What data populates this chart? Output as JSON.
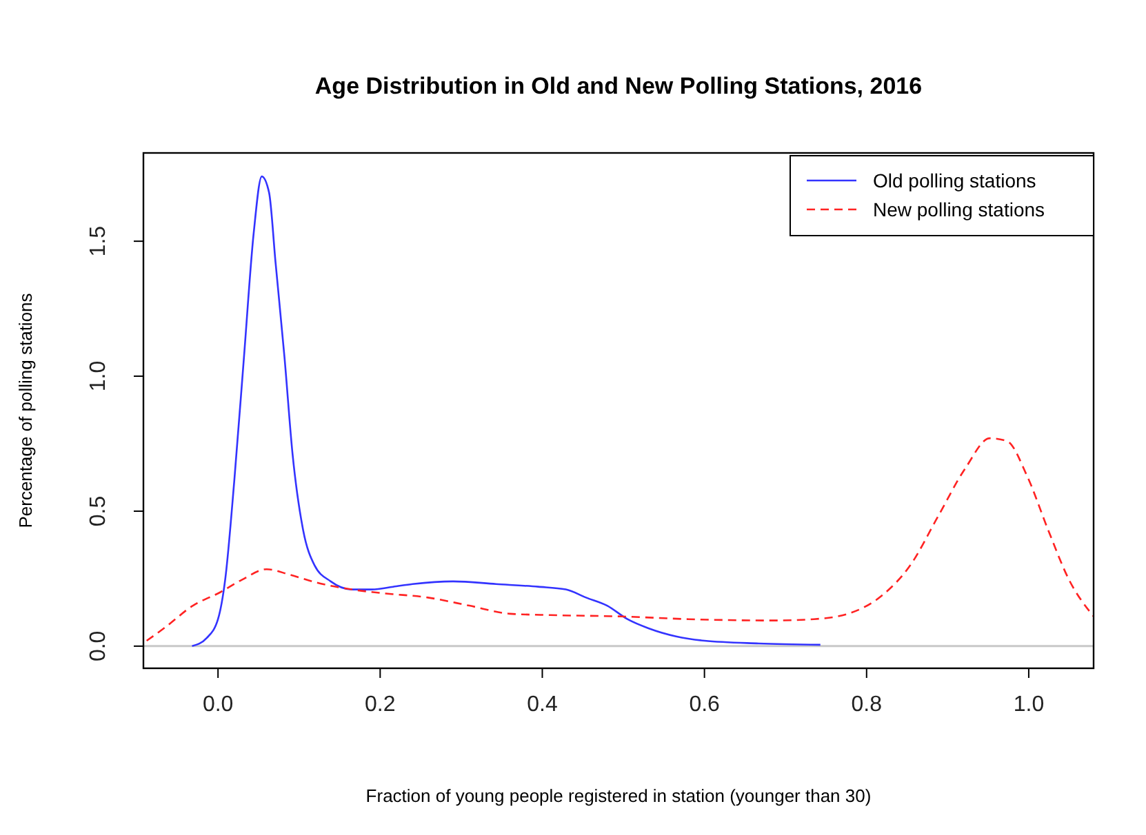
{
  "chart_data": {
    "type": "line",
    "title": "Age Distribution in Old and New Polling Stations, 2016",
    "xlabel": "Fraction of young people registered in station (younger than 30)",
    "ylabel": "Percentage of polling stations",
    "xlim": [
      -0.092,
      1.08
    ],
    "ylim": [
      -0.082,
      1.827
    ],
    "xticks": [
      {
        "value": 0,
        "label": "0.0"
      },
      0.2,
      0.4,
      0.6,
      0.8,
      {
        "value": 1,
        "label": "1.0"
      }
    ],
    "yticks": [
      {
        "value": 0,
        "label": "0.0"
      },
      0.5,
      {
        "value": 1,
        "label": "1.0"
      },
      1.5
    ],
    "legend": "top right",
    "grid": false,
    "ref_lines": [
      {
        "axis": "y",
        "value": 0,
        "color": "#c8c8c8"
      }
    ],
    "series": [
      {
        "name": "Old polling stations",
        "color": "#3333ff",
        "line_style": "solid",
        "x": [
          -0.032,
          -0.014,
          0,
          0.009,
          0.02,
          0.032,
          0.044,
          0.054,
          0.063,
          0.071,
          0.082,
          0.092,
          0.105,
          0.119,
          0.139,
          0.165,
          0.19,
          0.216,
          0.24,
          0.29,
          0.343,
          0.395,
          0.429,
          0.454,
          0.48,
          0.505,
          0.531,
          0.565,
          0.6,
          0.667,
          0.743
        ],
        "values": [
          0,
          0.03,
          0.1,
          0.25,
          0.61,
          1.07,
          1.53,
          1.74,
          1.68,
          1.42,
          1.07,
          0.71,
          0.43,
          0.3,
          0.24,
          0.21,
          0.21,
          0.22,
          0.23,
          0.24,
          0.23,
          0.22,
          0.21,
          0.18,
          0.15,
          0.1,
          0.066,
          0.036,
          0.02,
          0.01,
          0.005
        ]
      },
      {
        "name": "New polling stations",
        "color": "#ff2222",
        "line_style": "dashed",
        "x": [
          -0.088,
          -0.065,
          -0.031,
          0.003,
          0.029,
          0.06,
          0.088,
          0.122,
          0.165,
          0.207,
          0.259,
          0.31,
          0.36,
          0.41,
          0.497,
          0.58,
          0.684,
          0.735,
          0.777,
          0.82,
          0.854,
          0.888,
          0.922,
          0.952,
          0.973,
          0.998,
          1.024,
          1.049,
          1.08
        ],
        "values": [
          0.02,
          0.07,
          0.15,
          0.2,
          0.245,
          0.285,
          0.265,
          0.235,
          0.21,
          0.195,
          0.18,
          0.15,
          0.12,
          0.115,
          0.11,
          0.1,
          0.095,
          0.1,
          0.12,
          0.19,
          0.3,
          0.48,
          0.66,
          0.77,
          0.76,
          0.63,
          0.43,
          0.25,
          0.11
        ]
      }
    ]
  }
}
